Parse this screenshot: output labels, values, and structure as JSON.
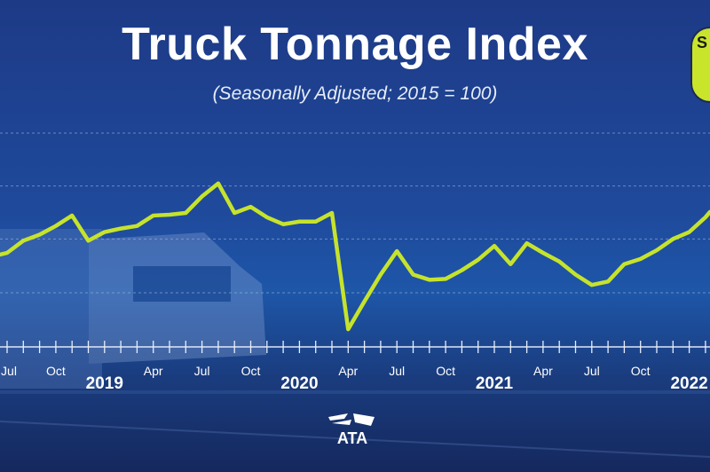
{
  "chart_data": {
    "type": "line",
    "title": "Truck Tonnage Index",
    "subtitle": "(Seasonally Adjusted; 2015 = 100)",
    "xlabel": "",
    "ylabel": "",
    "grid": true,
    "gridlines": [
      125.6,
      119.5,
      113.4,
      107.2
    ],
    "ylim": [
      107.2,
      125.6
    ],
    "x": [
      "2018-07",
      "2018-08",
      "2018-09",
      "2018-10",
      "2018-11",
      "2018-12",
      "2019-01",
      "2019-02",
      "2019-03",
      "2019-04",
      "2019-05",
      "2019-06",
      "2019-07",
      "2019-08",
      "2019-09",
      "2019-10",
      "2019-11",
      "2019-12",
      "2020-01",
      "2020-02",
      "2020-03",
      "2020-04",
      "2020-05",
      "2020-06",
      "2020-07",
      "2020-08",
      "2020-09",
      "2020-10",
      "2020-11",
      "2020-12",
      "2021-01",
      "2021-02",
      "2021-03",
      "2021-04",
      "2021-05",
      "2021-06",
      "2021-07",
      "2021-08",
      "2021-09",
      "2021-10",
      "2021-11",
      "2021-12",
      "2022-01",
      "2022-02"
    ],
    "series": [
      {
        "name": "Truck Tonnage Index",
        "color": "#c6e32c",
        "values": [
          111.8,
          113.2,
          113.9,
          114.9,
          116.1,
          113.2,
          114.2,
          114.6,
          114.9,
          116.1,
          116.2,
          116.4,
          118.3,
          119.8,
          116.4,
          117.1,
          115.9,
          115.1,
          115.4,
          115.4,
          116.4,
          103.0,
          106.2,
          109.3,
          112.0,
          109.3,
          108.7,
          108.8,
          109.8,
          111.0,
          112.6,
          110.5,
          112.9,
          111.8,
          110.8,
          109.3,
          108.1,
          108.5,
          110.5,
          111.1,
          112.1,
          113.4,
          114.2,
          115.9
        ]
      }
    ],
    "tick_labels": [
      "Jul",
      "Oct",
      "Apr",
      "Jul",
      "Oct",
      "Apr",
      "Jul",
      "Oct",
      "Apr",
      "Jul",
      "Oct"
    ],
    "year_labels": [
      "2019",
      "2020",
      "2021",
      "2022"
    ],
    "legend_badge": "S"
  },
  "logo": "ATA"
}
